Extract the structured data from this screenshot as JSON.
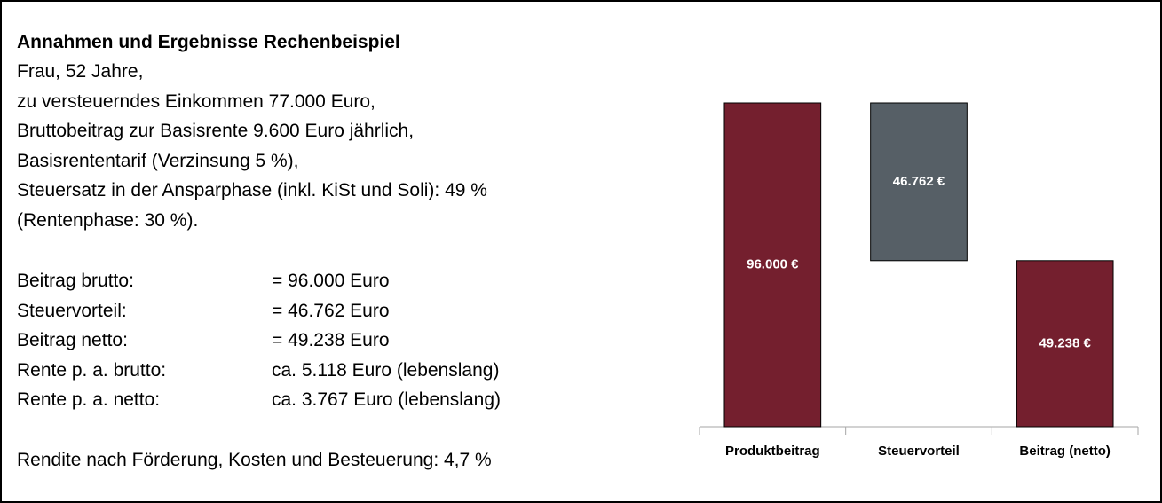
{
  "text": {
    "title": "Annahmen und Ergebnisse Rechenbeispiel",
    "lines": [
      "Frau, 52 Jahre,",
      "zu versteuerndes Einkommen 77.000 Euro,",
      "Bruttobeitrag zur Basisrente 9.600 Euro jährlich,",
      "Basisrententarif (Verzinsung 5 %),",
      "Steuersatz in der Ansparphase (inkl. KiSt und Soli): 49 %",
      "(Rentenphase: 30 %)."
    ],
    "rows": [
      [
        "Beitrag brutto:",
        "= 96.000 Euro"
      ],
      [
        "Steuervorteil:",
        "= 46.762 Euro"
      ],
      [
        "Beitrag netto:",
        "= 49.238 Euro"
      ],
      [
        "Rente p. a. brutto:",
        "ca. 5.118 Euro (lebenslang)"
      ],
      [
        "Rente p. a. netto:",
        "ca. 3.767 Euro (lebenslang)"
      ]
    ],
    "footer": "Rendite nach Förderung, Kosten und Besteuerung: 4,7 %"
  },
  "chart_data": {
    "type": "waterfall",
    "categories": [
      "Produktbeitrag",
      "Steuervorteil",
      "Beitrag (netto)"
    ],
    "values": [
      96000,
      46762,
      49238
    ],
    "value_labels": [
      "96.000 €",
      "46.762 €",
      "49.238 €"
    ],
    "measure": [
      "absolute",
      "relative",
      "total"
    ],
    "colors": [
      "#741f2e",
      "#565f66",
      "#741f2e"
    ]
  }
}
